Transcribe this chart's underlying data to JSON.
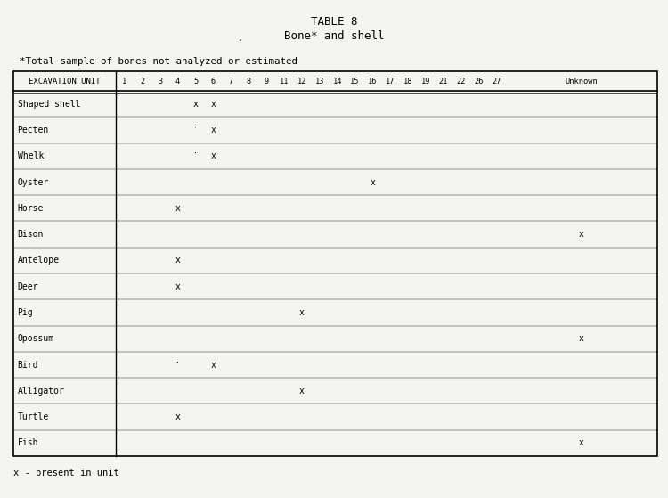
{
  "title_line1": "TABLE 8",
  "title_line2": "Bone* and shell",
  "title_dot": ".",
  "subtitle": "*Total sample of bones not analyzed or estimated",
  "footnote": "x - present in unit",
  "col_header": "EXCAVATION UNIT",
  "columns": [
    "1",
    "2",
    "3",
    "4",
    "5",
    "6",
    "7",
    "8",
    "9",
    "11",
    "12",
    "13",
    "14",
    "15",
    "16",
    "17",
    "18",
    "19",
    "21",
    "22",
    "26",
    "27",
    "Unknown"
  ],
  "rows": [
    "Shaped shell",
    "Pecten",
    "Whelk",
    "Oyster",
    "Horse",
    "Bison",
    "Antelope",
    "Deer",
    "Pig",
    "Opossum",
    "Bird",
    "Alligator",
    "Turtle",
    "Fish"
  ],
  "marks": {
    "Shaped shell": [
      "5",
      "6"
    ],
    "Pecten": [
      "6"
    ],
    "Whelk": [
      "6"
    ],
    "Oyster": [
      "16"
    ],
    "Horse": [
      "4"
    ],
    "Bison": [
      "Unknown"
    ],
    "Antelope": [
      "4"
    ],
    "Deer": [
      "4"
    ],
    "Pig": [
      "12"
    ],
    "Opossum": [
      "Unknown"
    ],
    "Bird": [
      "6"
    ],
    "Alligator": [
      "12"
    ],
    "Turtle": [
      "4"
    ],
    "Fish": [
      "Unknown"
    ]
  },
  "extra_dots": {
    "Pecten": [
      "5"
    ],
    "Whelk": [
      "5"
    ],
    "Bird": [
      "4"
    ]
  },
  "background_color": "#f5f5f0",
  "text_color": "#000000"
}
